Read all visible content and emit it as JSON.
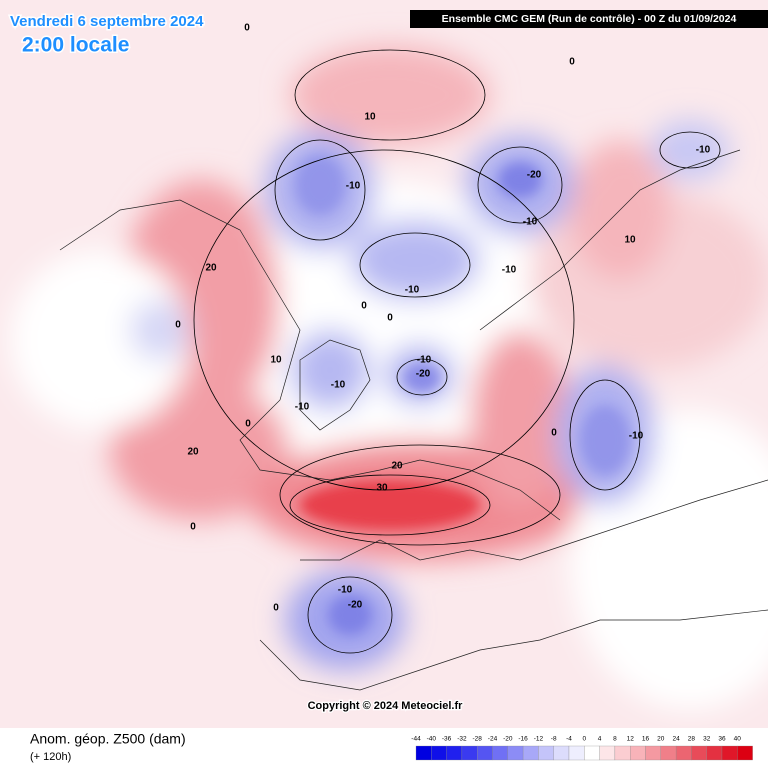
{
  "header": {
    "title": "Vendredi 6 septembre 2024",
    "subtitle": "2:00 locale",
    "model": "Ensemble CMC GEM  (Run de contrôle)  -  00 Z du 01/09/2024"
  },
  "map": {
    "contour_labels": [
      "0",
      "0",
      "10",
      "-10",
      "-10",
      "-20",
      "-10",
      "10",
      "20",
      "-10",
      "-10",
      "0",
      "0",
      "0",
      "10",
      "-10",
      "-10",
      "-20",
      "-10",
      "0",
      "-10",
      "20",
      "0",
      "20",
      "30",
      "0",
      "-10",
      "-20",
      "0"
    ],
    "copyright": "Copyright © 2024 Meteociel.fr"
  },
  "footer": {
    "field": "Anom. géop. Z500 (dam)",
    "lead": "(+ 120h)"
  },
  "colorbar": {
    "labels": [
      "-44",
      "-40",
      "-36",
      "-32",
      "-28",
      "-24",
      "-20",
      "-16",
      "-12",
      "-8",
      "-4",
      "0",
      "4",
      "8",
      "12",
      "16",
      "20",
      "24",
      "28",
      "32",
      "36",
      "40"
    ]
  }
}
